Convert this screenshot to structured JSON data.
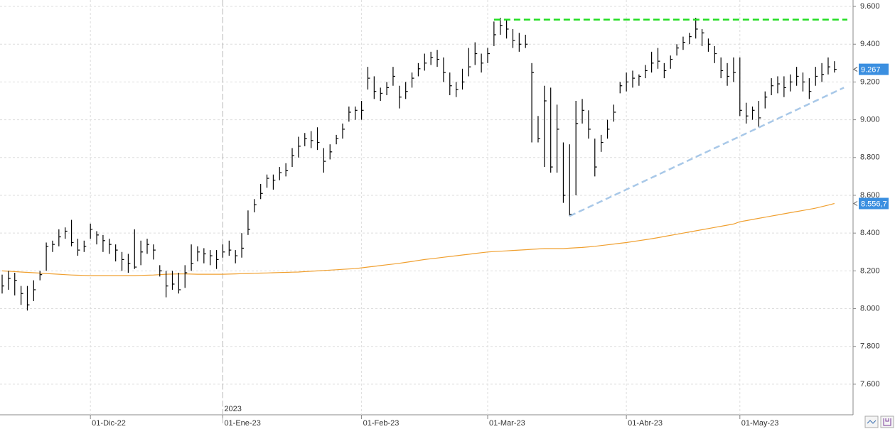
{
  "chart_data": {
    "type": "ohlc",
    "categories": [
      null,
      null,
      null,
      null,
      null,
      null,
      null,
      null,
      null,
      null,
      null,
      null,
      null,
      null,
      "01-Dic-22",
      null,
      null,
      null,
      null,
      null,
      null,
      null,
      null,
      null,
      null,
      null,
      null,
      null,
      null,
      null,
      null,
      null,
      null,
      null,
      null,
      "01-Ene-23",
      null,
      null,
      null,
      null,
      null,
      null,
      null,
      null,
      null,
      null,
      null,
      null,
      null,
      null,
      null,
      null,
      null,
      null,
      null,
      null,
      null,
      "01-Feb-23",
      null,
      null,
      null,
      null,
      null,
      null,
      null,
      null,
      null,
      null,
      null,
      null,
      null,
      null,
      null,
      null,
      null,
      null,
      null,
      "01-Mar-23",
      null,
      null,
      null,
      null,
      null,
      null,
      null,
      null,
      null,
      null,
      null,
      null,
      null,
      null,
      null,
      null,
      null,
      null,
      null,
      null,
      null,
      "01-Abr-23",
      null,
      null,
      null,
      null,
      null,
      null,
      null,
      null,
      null,
      null,
      null,
      null,
      null,
      null,
      null,
      null,
      null,
      "01-May-23",
      null,
      null,
      null,
      null,
      null,
      null,
      null,
      null,
      null,
      null,
      null,
      null,
      null,
      null,
      null
    ],
    "high": [
      8180,
      8200,
      8190,
      8120,
      8120,
      8150,
      8200,
      8350,
      8360,
      8420,
      8430,
      8470,
      8370,
      8360,
      8450,
      8410,
      8390,
      8370,
      8340,
      8300,
      8290,
      8420,
      8360,
      8370,
      8340,
      8230,
      8200,
      8200,
      8190,
      8230,
      8340,
      8330,
      8320,
      8310,
      8310,
      8340,
      8360,
      8310,
      8400,
      8520,
      8580,
      8660,
      8710,
      8710,
      8750,
      8770,
      8850,
      8910,
      8930,
      8940,
      8960,
      8850,
      8870,
      8920,
      8980,
      9070,
      9070,
      9100,
      9280,
      9230,
      9170,
      9200,
      9280,
      9180,
      9200,
      9250,
      9300,
      9350,
      9360,
      9370,
      9330,
      9250,
      9200,
      9270,
      9380,
      9410,
      9350,
      9380,
      9520,
      9540,
      9530,
      9480,
      9460,
      9450,
      9300,
      9020,
      9180,
      9170,
      9080,
      8880,
      8870,
      9100,
      9110,
      9050,
      8900,
      8920,
      9000,
      9080,
      9200,
      9250,
      9260,
      9240,
      9290,
      9360,
      9380,
      9300,
      9340,
      9400,
      9440,
      9460,
      9540,
      9480,
      9430,
      9390,
      9330,
      9300,
      9330,
      9330,
      9090,
      9070,
      9100,
      9150,
      9220,
      9230,
      9230,
      9240,
      9280,
      9250,
      9220,
      9280,
      9300,
      9330,
      9310
    ],
    "low": [
      8080,
      8100,
      8070,
      8020,
      7990,
      8040,
      8150,
      8200,
      8300,
      8330,
      8370,
      8330,
      8280,
      8300,
      8370,
      8340,
      8300,
      8290,
      8250,
      8200,
      8190,
      8210,
      8230,
      8290,
      8260,
      8170,
      8060,
      8100,
      8080,
      8110,
      8200,
      8250,
      8240,
      8230,
      8210,
      8270,
      8280,
      8240,
      8270,
      8390,
      8510,
      8580,
      8640,
      8630,
      8680,
      8700,
      8750,
      8800,
      8860,
      8850,
      8840,
      8720,
      8790,
      8870,
      8900,
      8990,
      9000,
      9000,
      9160,
      9110,
      9100,
      9130,
      9180,
      9060,
      9110,
      9170,
      9230,
      9260,
      9290,
      9280,
      9200,
      9130,
      9120,
      9160,
      9230,
      9290,
      9250,
      9300,
      9390,
      9450,
      9430,
      9380,
      9360,
      9380,
      8880,
      8880,
      8750,
      8720,
      8720,
      8560,
      8490,
      8600,
      8980,
      8900,
      8700,
      8830,
      8900,
      8990,
      9140,
      9150,
      9170,
      9180,
      9220,
      9250,
      9270,
      9220,
      9270,
      9340,
      9370,
      9400,
      9430,
      9390,
      9360,
      9300,
      9220,
      9180,
      9200,
      9020,
      8980,
      9000,
      8960,
      9060,
      9130,
      9140,
      9120,
      9150,
      9180,
      9150,
      9110,
      9180,
      9200,
      9240,
      9250
    ],
    "close": [
      8120,
      8160,
      8150,
      8080,
      8020,
      8100,
      8180,
      8330,
      8340,
      8380,
      8410,
      8350,
      8310,
      8330,
      8420,
      8390,
      8360,
      8340,
      8310,
      8260,
      8240,
      8220,
      8300,
      8340,
      8310,
      8200,
      8120,
      8130,
      8100,
      8190,
      8240,
      8300,
      8290,
      8280,
      8260,
      8300,
      8310,
      8280,
      8320,
      8420,
      8550,
      8610,
      8690,
      8680,
      8720,
      8730,
      8810,
      8860,
      8900,
      8890,
      8880,
      8780,
      8830,
      8900,
      8950,
      9040,
      9050,
      9050,
      9220,
      9150,
      9140,
      9170,
      9230,
      9120,
      9150,
      9220,
      9270,
      9300,
      9330,
      9320,
      9250,
      9180,
      9160,
      9200,
      9280,
      9350,
      9300,
      9350,
      9450,
      9500,
      9480,
      9420,
      9400,
      9400,
      9250,
      8900,
      9100,
      8750,
      8950,
      8600,
      8500,
      8980,
      9050,
      8950,
      8750,
      8880,
      8950,
      9040,
      9180,
      9200,
      9220,
      9230,
      9260,
      9300,
      9310,
      9260,
      9320,
      9380,
      9410,
      9440,
      9480,
      9460,
      9400,
      9350,
      9260,
      9230,
      9250,
      9050,
      9020,
      9050,
      9010,
      9120,
      9180,
      9190,
      9170,
      9200,
      9230,
      9200,
      9150,
      9230,
      9240,
      9280,
      9267
    ],
    "color": "#000000",
    "moving_average": {
      "color": "#f0a030",
      "values": [
        8200,
        8198,
        8196,
        8194,
        8192,
        8190,
        8188,
        8186,
        8184,
        8182,
        8180,
        8178,
        8177,
        8176,
        8175,
        8175,
        8175,
        8175,
        8175,
        8175,
        8175,
        8175,
        8176,
        8177,
        8178,
        8180,
        8182,
        8183,
        8184,
        8184,
        8183,
        8182,
        8182,
        8182,
        8182,
        8182,
        8183,
        8184,
        8185,
        8186,
        8187,
        8188,
        8189,
        8190,
        8191,
        8192,
        8193,
        8194,
        8196,
        8198,
        8200,
        8202,
        8204,
        8206,
        8208,
        8210,
        8212,
        8216,
        8220,
        8224,
        8228,
        8232,
        8236,
        8240,
        8245,
        8250,
        8255,
        8260,
        8264,
        8268,
        8272,
        8276,
        8280,
        8284,
        8288,
        8292,
        8296,
        8300,
        8302,
        8304,
        8306,
        8308,
        8310,
        8312,
        8314,
        8316,
        8318,
        8318,
        8318,
        8318,
        8320,
        8322,
        8324,
        8327,
        8330,
        8334,
        8338,
        8342,
        8346,
        8350,
        8355,
        8360,
        8365,
        8370,
        8376,
        8382,
        8388,
        8394,
        8400,
        8406,
        8412,
        8418,
        8424,
        8430,
        8436,
        8442,
        8448,
        8460,
        8466,
        8472,
        8478,
        8484,
        8490,
        8496,
        8502,
        8508,
        8514,
        8520,
        8526,
        8532,
        8540,
        8548,
        8556.7
      ]
    },
    "resistance": {
      "value": 9530,
      "start": 78,
      "color": "#22dd22"
    },
    "trendline": {
      "from": [
        90,
        8490
      ],
      "to": [
        133.5,
        9170
      ],
      "color": "#a8c8e8"
    },
    "markers": [
      {
        "value": 9267,
        "label": "9.267",
        "color": "#3b8fe0"
      },
      {
        "value": 8556.7,
        "label": "8.556,7",
        "color": "#3b8fe0"
      }
    ],
    "separator": {
      "at": 35,
      "label": "2023"
    },
    "ylim": [
      7438,
      9634
    ],
    "yticks": [
      {
        "value": 7600,
        "label": "7.600"
      },
      {
        "value": 7800,
        "label": "7.800"
      },
      {
        "value": 8000,
        "label": "8.000"
      },
      {
        "value": 8200,
        "label": "8.200"
      },
      {
        "value": 8400,
        "label": "8.400"
      },
      {
        "value": 8600,
        "label": "8.600"
      },
      {
        "value": 8800,
        "label": "8.800"
      },
      {
        "value": 9000,
        "label": "9.000"
      },
      {
        "value": 9200,
        "label": "9.200"
      },
      {
        "value": 9400,
        "label": "9.400"
      },
      {
        "value": 9600,
        "label": "9.600"
      }
    ],
    "grid": true
  }
}
